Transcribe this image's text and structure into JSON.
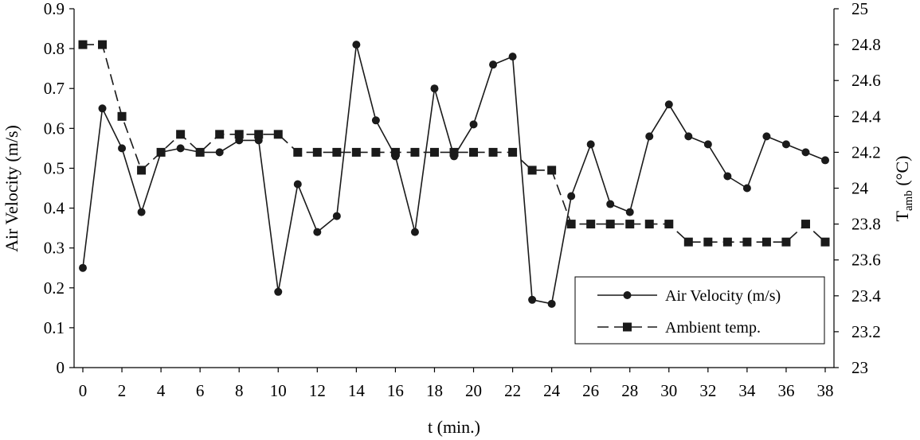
{
  "chart_data": {
    "type": "line",
    "xlabel": "t (min.)",
    "ylabel_left": "Air Velocity (m/s)",
    "ylabel_right": {
      "main": "T",
      "sub": "amb",
      "suffix": " (°C)"
    },
    "xlim": [
      0,
      38
    ],
    "ylim_left": [
      0,
      0.9
    ],
    "ylim_right": [
      23,
      25
    ],
    "x_ticks": [
      0,
      2,
      4,
      6,
      8,
      10,
      12,
      14,
      16,
      18,
      20,
      22,
      24,
      26,
      28,
      30,
      32,
      34,
      36,
      38
    ],
    "y_left_ticks": [
      "0",
      "0.1",
      "0.2",
      "0.3",
      "0.4",
      "0.5",
      "0.6",
      "0.7",
      "0.8",
      "0.9"
    ],
    "y_right_ticks": [
      "23",
      "23.2",
      "23.4",
      "23.6",
      "23.8",
      "24",
      "24.2",
      "24.4",
      "24.6",
      "24.8",
      "25"
    ],
    "grid": false,
    "legend_position": "bottom-right",
    "x": [
      0,
      1,
      2,
      3,
      4,
      5,
      6,
      7,
      8,
      9,
      10,
      11,
      12,
      13,
      14,
      15,
      16,
      17,
      18,
      19,
      20,
      21,
      22,
      23,
      24,
      25,
      26,
      27,
      28,
      29,
      30,
      31,
      32,
      33,
      34,
      35,
      36,
      37,
      38
    ],
    "series": [
      {
        "name": "Air Velocity (m/s)",
        "axis": "left",
        "marker": "circle",
        "line": "solid",
        "color": "#1a1a1a",
        "values": [
          0.25,
          0.65,
          0.55,
          0.39,
          0.54,
          0.55,
          0.54,
          0.54,
          0.57,
          0.57,
          0.19,
          0.46,
          0.34,
          0.38,
          0.81,
          0.62,
          0.53,
          0.34,
          0.7,
          0.53,
          0.61,
          0.76,
          0.78,
          0.17,
          0.16,
          0.43,
          0.56,
          0.41,
          0.39,
          0.58,
          0.66,
          0.58,
          0.56,
          0.48,
          0.45,
          0.58,
          0.56,
          0.54,
          0.52
        ]
      },
      {
        "name": "Ambient temp.",
        "axis": "right",
        "marker": "square",
        "line": "dashed",
        "color": "#1a1a1a",
        "values": [
          24.8,
          24.8,
          24.4,
          24.1,
          24.2,
          24.3,
          24.2,
          24.3,
          24.3,
          24.3,
          24.3,
          24.2,
          24.2,
          24.2,
          24.2,
          24.2,
          24.2,
          24.2,
          24.2,
          24.2,
          24.2,
          24.2,
          24.2,
          24.1,
          24.1,
          23.8,
          23.8,
          23.8,
          23.8,
          23.8,
          23.8,
          23.7,
          23.7,
          23.7,
          23.7,
          23.7,
          23.7,
          23.8,
          23.7
        ]
      }
    ]
  }
}
